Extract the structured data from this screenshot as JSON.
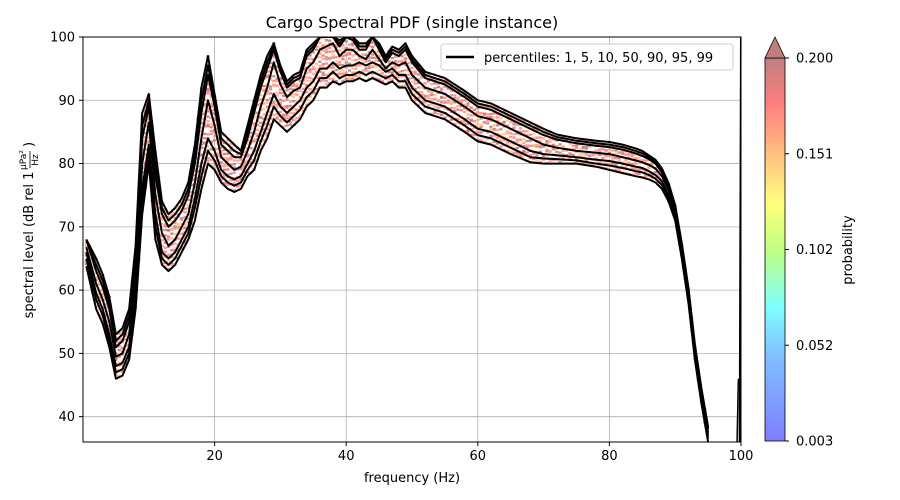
{
  "chart_data": {
    "type": "line",
    "title": "Cargo Spectral PDF (single instance)",
    "xlabel": "frequency (Hz)",
    "ylabel_main": "spectral level (dB rel 1",
    "ylabel_numerator": "µPa²",
    "ylabel_denominator": "Hz",
    "ylabel_close": ")",
    "xlim": [
      0,
      100
    ],
    "ylim": [
      36,
      100
    ],
    "xticks": [
      20,
      40,
      60,
      80,
      100
    ],
    "yticks": [
      40,
      50,
      60,
      70,
      80,
      90,
      100
    ],
    "grid": true,
    "legend": {
      "placement": "top-right",
      "label": "percentiles: 1, 5, 10, 50, 90, 95, 99"
    },
    "colorbar": {
      "label": "probability",
      "ticks": [
        "0.200",
        "0.151",
        "0.102",
        "0.052",
        "0.003"
      ],
      "range": [
        0.003,
        0.2
      ],
      "extend": "max"
    },
    "x": [
      0.5,
      2,
      3,
      4,
      5,
      6,
      7,
      8,
      9,
      10,
      11,
      12,
      13,
      14,
      15,
      16,
      17,
      18,
      19,
      20,
      21,
      22,
      23,
      24,
      25,
      26,
      27,
      28,
      29,
      30,
      31,
      32,
      33,
      34,
      35,
      36,
      37,
      38,
      39,
      40,
      41,
      42,
      43,
      44,
      45,
      46,
      47,
      48,
      49,
      50,
      52,
      55,
      58,
      60,
      62,
      65,
      68,
      70,
      72,
      75,
      78,
      80,
      82,
      84,
      85,
      86,
      87,
      88,
      89,
      90,
      91,
      92,
      93,
      94,
      95
    ],
    "series": [
      {
        "values": [
          63.8,
          57.0,
          54.7,
          51.0,
          46.0,
          46.5,
          49.0,
          57.0,
          72.0,
          80.0,
          68.0,
          64.0,
          63.0,
          64.0,
          66.0,
          68.0,
          71.0,
          76.0,
          80.0,
          79.0,
          77.0,
          76.0,
          75.5,
          76.0,
          78.0,
          79.0,
          82.0,
          84.0,
          87.0,
          86.0,
          85.0,
          86.0,
          87.0,
          89.0,
          90.0,
          92.0,
          92.0,
          93.0,
          92.5,
          93.0,
          93.0,
          93.5,
          93.0,
          93.5,
          93.0,
          92.5,
          93.0,
          92.0,
          92.0,
          90.0,
          88.0,
          87.0,
          85.0,
          83.5,
          83.0,
          81.5,
          80.2,
          80.0,
          80.0,
          80.0,
          79.5,
          79.0,
          78.5,
          78.0,
          77.8,
          77.5,
          77.0,
          76.0,
          74.0,
          71.0,
          65.0,
          58.0,
          49.0,
          42.0,
          36.0
        ]
      },
      {
        "values": [
          65.0,
          58.5,
          56.0,
          52.0,
          47.0,
          47.5,
          50.0,
          58.5,
          74.0,
          81.5,
          70.0,
          65.0,
          64.0,
          65.0,
          67.0,
          69.0,
          73.0,
          78.0,
          82.0,
          80.5,
          78.0,
          77.0,
          76.5,
          77.0,
          79.0,
          80.5,
          83.5,
          86.0,
          89.0,
          87.5,
          86.5,
          87.5,
          88.5,
          90.5,
          91.5,
          93.5,
          93.5,
          94.5,
          93.5,
          94.0,
          94.0,
          94.5,
          94.0,
          94.5,
          94.0,
          93.5,
          94.0,
          93.0,
          93.0,
          91.0,
          89.0,
          88.0,
          86.0,
          84.5,
          84.0,
          82.5,
          81.0,
          80.8,
          80.7,
          80.5,
          80.0,
          79.7,
          79.3,
          78.8,
          78.6,
          78.2,
          77.6,
          76.6,
          74.5,
          71.5,
          65.5,
          58.5,
          49.5,
          42.5,
          36.5
        ]
      },
      {
        "values": [
          66.0,
          59.5,
          57.0,
          53.0,
          48.0,
          48.5,
          51.0,
          59.5,
          76.0,
          83.0,
          72.0,
          66.0,
          65.0,
          66.0,
          68.0,
          70.0,
          74.5,
          80.0,
          84.0,
          82.0,
          79.0,
          78.0,
          77.5,
          78.0,
          80.0,
          82.0,
          85.0,
          88.0,
          91.0,
          89.0,
          88.0,
          89.0,
          90.0,
          92.0,
          93.0,
          95.0,
          95.0,
          96.0,
          95.0,
          95.5,
          95.5,
          96.0,
          95.5,
          96.0,
          95.5,
          94.5,
          95.0,
          94.0,
          94.0,
          92.0,
          90.0,
          89.0,
          87.0,
          85.5,
          85.0,
          83.5,
          82.0,
          81.5,
          81.3,
          81.0,
          80.6,
          80.4,
          80.0,
          79.5,
          79.3,
          78.8,
          78.2,
          77.2,
          75.0,
          72.0,
          66.0,
          59.0,
          50.0,
          43.0,
          37.0
        ]
      },
      {
        "values": [
          66.8,
          61.0,
          58.5,
          55.0,
          49.5,
          50.0,
          53.0,
          61.5,
          80.0,
          86.5,
          75.0,
          69.0,
          67.0,
          68.0,
          70.0,
          72.0,
          77.0,
          84.0,
          90.0,
          86.0,
          81.0,
          80.0,
          79.0,
          79.5,
          82.0,
          85.0,
          89.0,
          92.0,
          96.0,
          92.5,
          90.5,
          91.5,
          92.0,
          95.0,
          96.0,
          98.0,
          98.5,
          99.0,
          97.0,
          98.0,
          98.0,
          97.0,
          96.5,
          98.0,
          96.5,
          95.0,
          96.0,
          95.5,
          96.0,
          94.0,
          92.0,
          91.0,
          89.0,
          87.5,
          87.0,
          85.5,
          84.0,
          83.0,
          82.5,
          82.0,
          81.7,
          81.5,
          81.0,
          80.5,
          80.2,
          79.8,
          79.2,
          78.0,
          75.8,
          72.5,
          66.5,
          59.5,
          50.5,
          43.5,
          37.5
        ]
      },
      {
        "values": [
          68.0,
          63.0,
          60.5,
          57.0,
          51.0,
          52.0,
          55.0,
          64.0,
          84.0,
          89.0,
          78.0,
          72.0,
          70.0,
          71.0,
          72.5,
          75.0,
          80.0,
          88.0,
          94.0,
          89.0,
          83.0,
          82.0,
          81.0,
          81.0,
          84.0,
          88.0,
          92.0,
          95.0,
          98.0,
          94.5,
          92.0,
          93.0,
          93.5,
          97.0,
          98.0,
          100.0,
          100.0,
          100.0,
          98.5,
          100.0,
          99.5,
          98.0,
          98.0,
          100.0,
          98.0,
          96.0,
          97.5,
          97.0,
          98.0,
          96.0,
          93.5,
          92.5,
          90.5,
          89.0,
          88.5,
          87.0,
          85.5,
          84.5,
          83.8,
          83.2,
          82.8,
          82.6,
          82.2,
          81.6,
          81.2,
          80.7,
          80.0,
          78.6,
          76.3,
          73.0,
          67.0,
          60.0,
          51.0,
          44.0,
          38.0
        ]
      },
      {
        "values": [
          68.0,
          64.0,
          61.5,
          58.0,
          52.0,
          53.0,
          56.0,
          65.5,
          86.0,
          90.0,
          80.0,
          73.0,
          71.0,
          72.0,
          73.5,
          76.0,
          81.5,
          90.0,
          95.5,
          90.0,
          84.0,
          83.0,
          82.0,
          81.5,
          85.0,
          89.0,
          93.0,
          96.0,
          98.5,
          95.0,
          92.5,
          93.5,
          94.0,
          97.5,
          98.5,
          100.0,
          100.0,
          100.0,
          99.0,
          100.0,
          100.0,
          98.5,
          98.5,
          100.0,
          98.5,
          96.5,
          98.0,
          97.5,
          98.5,
          96.5,
          94.0,
          93.0,
          91.0,
          89.5,
          89.0,
          87.5,
          86.0,
          85.0,
          84.2,
          83.6,
          83.2,
          83.0,
          82.6,
          82.0,
          81.6,
          81.0,
          80.3,
          78.9,
          76.6,
          73.2,
          67.2,
          60.2,
          51.2,
          44.2,
          38.2
        ]
      },
      {
        "values": [
          68.0,
          65.0,
          62.5,
          59.0,
          53.0,
          54.0,
          57.0,
          67.0,
          88.0,
          91.0,
          82.0,
          74.0,
          72.0,
          73.0,
          74.5,
          77.0,
          83.0,
          92.0,
          97.0,
          91.0,
          85.0,
          84.0,
          83.0,
          82.0,
          86.0,
          90.0,
          94.0,
          97.0,
          99.0,
          95.5,
          93.0,
          94.0,
          94.5,
          98.0,
          99.0,
          100.0,
          100.0,
          100.0,
          99.5,
          100.0,
          100.0,
          99.0,
          99.0,
          100.0,
          99.0,
          97.0,
          98.5,
          98.0,
          99.0,
          97.0,
          94.5,
          93.5,
          91.5,
          90.0,
          89.5,
          88.0,
          86.5,
          85.5,
          84.6,
          84.0,
          83.6,
          83.4,
          83.0,
          82.4,
          82.0,
          81.3,
          80.6,
          79.2,
          76.9,
          73.4,
          67.4,
          60.4,
          51.4,
          44.4,
          38.4
        ]
      }
    ]
  }
}
